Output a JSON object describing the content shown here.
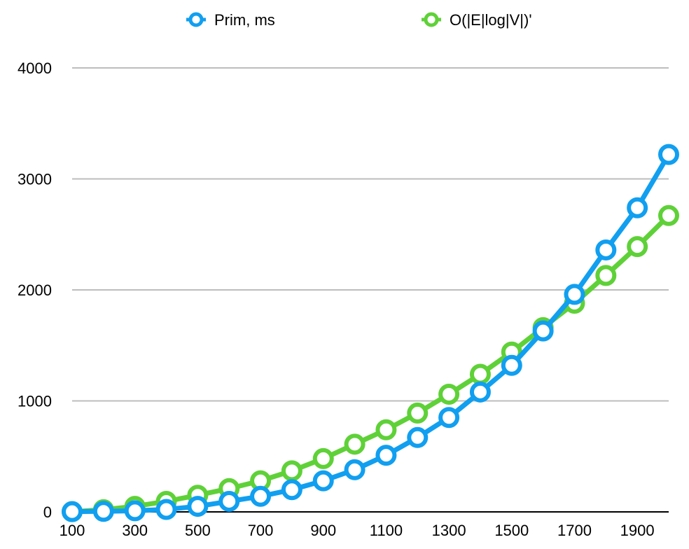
{
  "chart_data": {
    "type": "line",
    "title": "",
    "xlabel": "",
    "ylabel": "",
    "x": [
      100,
      200,
      300,
      400,
      500,
      600,
      700,
      800,
      900,
      1000,
      1100,
      1200,
      1300,
      1400,
      1500,
      1600,
      1700,
      1800,
      1900,
      2000
    ],
    "x_tick_labels": [
      "100",
      "300",
      "500",
      "700",
      "900",
      "1100",
      "1300",
      "1500",
      "1700",
      "1900"
    ],
    "x_tick_values": [
      100,
      300,
      500,
      700,
      900,
      1100,
      1300,
      1500,
      1700,
      1900
    ],
    "xlim": [
      100,
      2000
    ],
    "y_tick_labels": [
      "0",
      "1000",
      "2000",
      "3000",
      "4000"
    ],
    "y_tick_values": [
      0,
      1000,
      2000,
      3000,
      4000
    ],
    "ylim": [
      0,
      4000
    ],
    "grid": "horizontal",
    "legend_position": "top",
    "series": [
      {
        "name": "Prim, ms",
        "color": "#119ff0",
        "values": [
          2,
          5,
          10,
          22,
          50,
          95,
          140,
          200,
          280,
          380,
          510,
          670,
          850,
          1080,
          1320,
          1630,
          1960,
          2360,
          2740,
          3220
        ]
      },
      {
        "name": "O(|E|log|V|)'",
        "color": "#5fd138",
        "values": [
          2,
          20,
          50,
          95,
          150,
          210,
          280,
          370,
          480,
          610,
          740,
          890,
          1060,
          1240,
          1440,
          1660,
          1880,
          2130,
          2390,
          2670
        ]
      }
    ]
  }
}
